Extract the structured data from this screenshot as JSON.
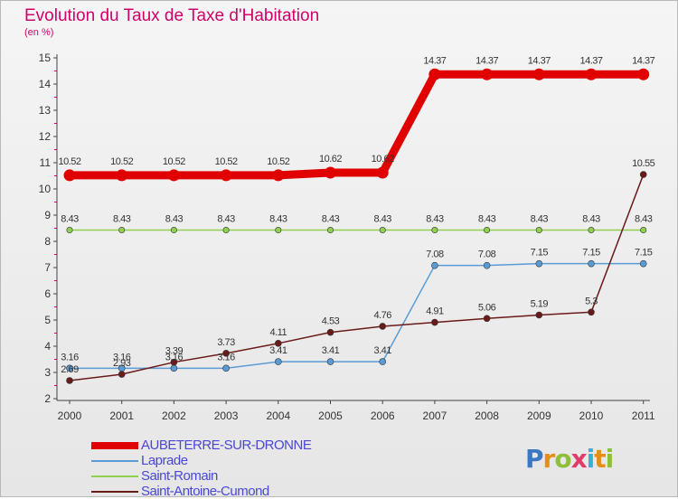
{
  "chart_data": {
    "type": "line",
    "title": "Evolution du Taux de Taxe d'Habitation",
    "subtitle": "(en %)",
    "xlabel": "",
    "ylabel": "",
    "x": [
      "2000",
      "2001",
      "2002",
      "2003",
      "2004",
      "2005",
      "2006",
      "2007",
      "2008",
      "2009",
      "2010",
      "2011"
    ],
    "ylim": [
      2,
      15
    ],
    "yticks": [
      "2",
      "3",
      "4",
      "5",
      "6",
      "7",
      "8",
      "9",
      "10",
      "11",
      "12",
      "13",
      "14",
      "15"
    ],
    "grid": false,
    "legend_position": "bottom-left",
    "series": [
      {
        "name": "AUBETERRE-SUR-DRONNE",
        "color": "#e00000",
        "values": [
          10.52,
          10.52,
          10.52,
          10.52,
          10.52,
          10.62,
          10.62,
          14.37,
          14.37,
          14.37,
          14.37,
          14.37
        ],
        "labels": [
          "10.52",
          "10.52",
          "10.52",
          "10.52",
          "10.52",
          "10.62",
          "10.62",
          "14.37",
          "14.37",
          "14.37",
          "14.37",
          "14.37"
        ]
      },
      {
        "name": "Laprade",
        "color": "#5b9bd5",
        "values": [
          3.16,
          3.16,
          3.16,
          3.16,
          3.41,
          3.41,
          3.41,
          7.08,
          7.08,
          7.15,
          7.15,
          7.15
        ],
        "labels": [
          "3.16",
          "3.16",
          "3.16",
          "3.16",
          "3.41",
          "3.41",
          "3.41",
          "7.08",
          "7.08",
          "7.15",
          "7.15",
          "7.15"
        ]
      },
      {
        "name": "Saint-Romain",
        "color": "#8fd14f",
        "values": [
          8.43,
          8.43,
          8.43,
          8.43,
          8.43,
          8.43,
          8.43,
          8.43,
          8.43,
          8.43,
          8.43,
          8.43
        ],
        "labels": [
          "8.43",
          "8.43",
          "8.43",
          "8.43",
          "8.43",
          "8.43",
          "8.43",
          "8.43",
          "8.43",
          "8.43",
          "8.43",
          "8.43"
        ]
      },
      {
        "name": "Saint-Antoine-Cumond",
        "color": "#6b1a1a",
        "values": [
          2.69,
          2.93,
          3.39,
          3.73,
          4.11,
          4.53,
          4.76,
          4.91,
          5.06,
          5.19,
          5.3,
          10.55
        ],
        "labels": [
          "2.69",
          "2.93",
          "3.39",
          "3.73",
          "4.11",
          "4.53",
          "4.76",
          "4.91",
          "5.06",
          "5.19",
          "5.3",
          "10.55"
        ]
      }
    ]
  },
  "logo": {
    "text": "Proxiti"
  }
}
